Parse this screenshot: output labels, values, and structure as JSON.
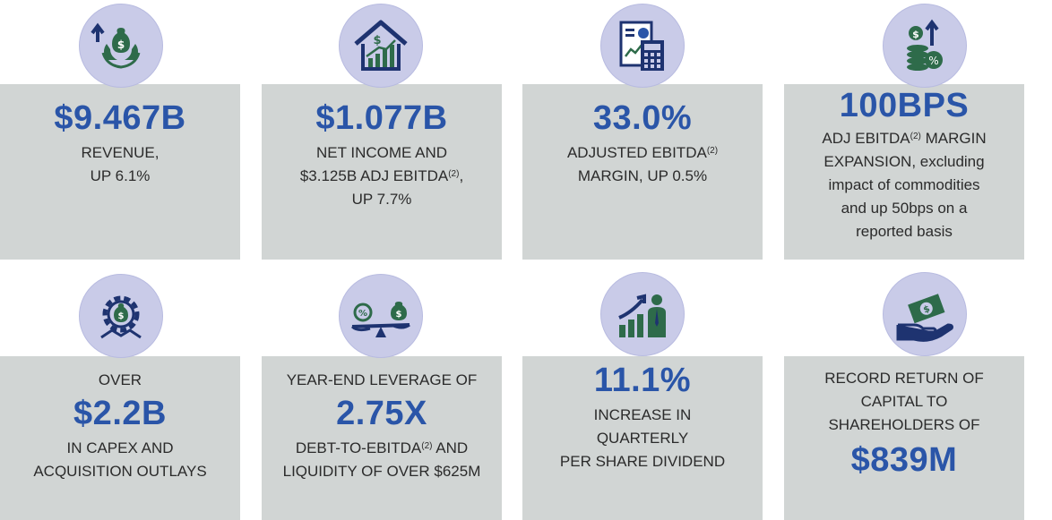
{
  "colors": {
    "accent": "#2a55a8",
    "card": "#d1d5d4",
    "icon_bg": "#c9cbe8",
    "green": "#2e6b4a",
    "navy": "#1e3370"
  },
  "cards": [
    {
      "value": "$9.467B",
      "lines": [
        "REVENUE,",
        "UP 6.1%"
      ],
      "icon": "money-bag-hands-icon"
    },
    {
      "value": "$1.077B",
      "line1": "NET INCOME AND",
      "line2_pre": "$3.125B ADJ EBITDA",
      "sup": "(2)",
      "line2_post": ",",
      "line3": "UP 7.7%",
      "icon": "house-growth-icon"
    },
    {
      "value": "33.0%",
      "line1_pre": "ADJUSTED EBITDA",
      "sup": "(2)",
      "line2": "MARGIN, UP 0.5%",
      "icon": "report-calculator-icon"
    },
    {
      "value": "100BPS",
      "line1_pre": "ADJ EBITDA",
      "sup": "(2)",
      "line1_post": " MARGIN",
      "lines": [
        "EXPANSION, excluding",
        "impact of commodities",
        "and up 50bps on a",
        "reported basis"
      ],
      "icon": "coins-percent-icon"
    },
    {
      "pre": "OVER",
      "value": "$2.2B",
      "lines": [
        "IN CAPEX AND",
        "ACQUISITION OUTLAYS"
      ],
      "icon": "gear-handshake-icon"
    },
    {
      "pre": "YEAR-END LEVERAGE OF",
      "value": "2.75X",
      "line1_pre": "DEBT-TO-EBITDA",
      "sup": "(2)",
      "line1_post": " AND",
      "line2": "LIQUIDITY OF OVER $625M",
      "icon": "balance-scale-icon"
    },
    {
      "value": "11.1%",
      "lines": [
        "INCREASE IN",
        "QUARTERLY",
        "PER SHARE DIVIDEND"
      ],
      "icon": "chart-person-icon"
    },
    {
      "pre_lines": [
        "RECORD RETURN OF",
        "CAPITAL TO",
        "SHAREHOLDERS OF"
      ],
      "value": "$839M",
      "icon": "cash-hand-icon"
    }
  ]
}
